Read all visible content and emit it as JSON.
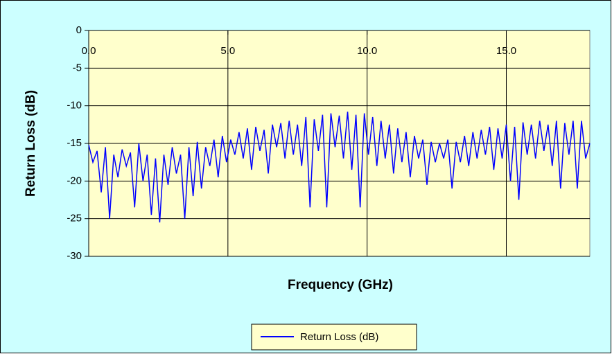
{
  "chart_data": {
    "type": "line",
    "x_label": "Frequency (GHz)",
    "y_label": "Return Loss (dB)",
    "xlim": [
      0,
      18
    ],
    "ylim": [
      -30,
      0
    ],
    "xticks": [
      {
        "value": 0,
        "label": "0.0"
      },
      {
        "value": 5,
        "label": "5.0"
      },
      {
        "value": 10,
        "label": "10.0"
      },
      {
        "value": 15,
        "label": "15.0"
      }
    ],
    "yticks": [
      0,
      -5,
      -10,
      -15,
      -20,
      -25,
      -30
    ],
    "grid": true,
    "legend": "bottom",
    "x": [
      0.0,
      0.15,
      0.3,
      0.45,
      0.6,
      0.75,
      0.9,
      1.05,
      1.2,
      1.35,
      1.5,
      1.65,
      1.8,
      1.95,
      2.1,
      2.25,
      2.4,
      2.55,
      2.7,
      2.85,
      3.0,
      3.15,
      3.3,
      3.45,
      3.6,
      3.75,
      3.9,
      4.05,
      4.2,
      4.35,
      4.5,
      4.65,
      4.8,
      4.95,
      5.1,
      5.25,
      5.4,
      5.55,
      5.7,
      5.85,
      6.0,
      6.15,
      6.3,
      6.45,
      6.6,
      6.75,
      6.9,
      7.05,
      7.2,
      7.35,
      7.5,
      7.65,
      7.8,
      7.95,
      8.1,
      8.25,
      8.4,
      8.55,
      8.7,
      8.85,
      9.0,
      9.15,
      9.3,
      9.45,
      9.6,
      9.75,
      9.9,
      10.05,
      10.2,
      10.35,
      10.5,
      10.65,
      10.8,
      10.95,
      11.1,
      11.25,
      11.4,
      11.55,
      11.7,
      11.85,
      12.0,
      12.15,
      12.3,
      12.45,
      12.6,
      12.75,
      12.9,
      13.05,
      13.2,
      13.35,
      13.5,
      13.65,
      13.8,
      13.95,
      14.1,
      14.25,
      14.4,
      14.55,
      14.7,
      14.85,
      15.0,
      15.15,
      15.3,
      15.45,
      15.6,
      15.75,
      15.9,
      16.05,
      16.2,
      16.35,
      16.5,
      16.65,
      16.8,
      16.95,
      17.1,
      17.25,
      17.4,
      17.55,
      17.7,
      17.85,
      18.0
    ],
    "series": [
      {
        "name": "Return Loss (dB)",
        "color": "#0000ff",
        "values": [
          -15.2,
          -17.5,
          -16.0,
          -21.5,
          -15.5,
          -25.0,
          -16.5,
          -19.5,
          -15.8,
          -18.0,
          -16.2,
          -23.5,
          -15.0,
          -20.0,
          -16.5,
          -24.5,
          -17.0,
          -25.5,
          -16.5,
          -20.5,
          -15.5,
          -19.0,
          -16.5,
          -25.0,
          -15.5,
          -22.0,
          -14.8,
          -21.0,
          -15.5,
          -18.0,
          -14.5,
          -19.5,
          -14.0,
          -17.5,
          -14.5,
          -16.5,
          -13.5,
          -17.0,
          -13.0,
          -18.5,
          -12.8,
          -16.0,
          -13.2,
          -19.0,
          -12.5,
          -15.5,
          -12.3,
          -17.0,
          -12.0,
          -16.5,
          -12.5,
          -18.0,
          -11.5,
          -23.5,
          -11.8,
          -16.0,
          -11.2,
          -23.5,
          -11.0,
          -15.5,
          -11.3,
          -17.0,
          -10.8,
          -18.5,
          -11.2,
          -23.5,
          -11.0,
          -16.5,
          -11.5,
          -18.0,
          -12.0,
          -17.0,
          -12.5,
          -19.0,
          -13.0,
          -17.5,
          -13.5,
          -19.5,
          -14.0,
          -17.0,
          -14.5,
          -20.5,
          -14.8,
          -17.5,
          -15.0,
          -17.0,
          -14.5,
          -21.0,
          -14.8,
          -17.5,
          -14.0,
          -18.0,
          -13.5,
          -17.0,
          -13.2,
          -16.5,
          -12.8,
          -18.5,
          -13.0,
          -17.0,
          -12.5,
          -20.0,
          -12.8,
          -22.5,
          -12.2,
          -16.5,
          -12.5,
          -17.0,
          -12.0,
          -16.0,
          -12.5,
          -18.0,
          -12.0,
          -21.0,
          -12.3,
          -16.5,
          -12.0,
          -21.0,
          -12.0,
          -17.0,
          -15.0
        ]
      }
    ]
  }
}
